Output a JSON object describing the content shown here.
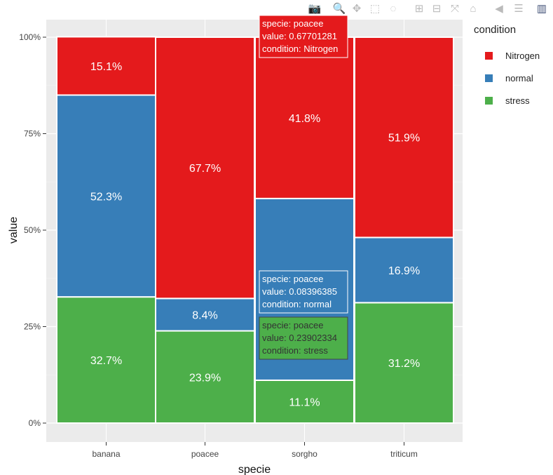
{
  "toolbar": {
    "icons": [
      "camera-icon",
      "zoom-icon",
      "pan-icon",
      "box-select-icon",
      "lasso-icon",
      "zoom-in-icon",
      "zoom-out-icon",
      "autoscale-icon",
      "reset-axes-icon",
      "hover-closest-icon",
      "hover-compare-icon",
      "plotly-logo-icon"
    ]
  },
  "colors": {
    "Nitrogen": "#e41a1c",
    "normal": "#377eb8",
    "stress": "#4daf4a",
    "panel": "#ebebeb"
  },
  "chart_data": {
    "type": "bar",
    "stacked": "percent",
    "xlabel": "specie",
    "ylabel": "value",
    "categories": [
      "banana",
      "poacee",
      "sorgho",
      "triticum"
    ],
    "yticks": [
      "0%",
      "25%",
      "50%",
      "75%",
      "100%"
    ],
    "ylim": [
      0,
      1
    ],
    "series": [
      {
        "name": "stress",
        "values": [
          0.327,
          0.239,
          0.111,
          0.312
        ],
        "labels": [
          "32.7%",
          "23.9%",
          "11.1%",
          "31.2%"
        ]
      },
      {
        "name": "normal",
        "values": [
          0.523,
          0.084,
          0.471,
          0.169
        ],
        "labels": [
          "52.3%",
          "8.4%",
          "",
          "16.9%"
        ]
      },
      {
        "name": "Nitrogen",
        "values": [
          0.151,
          0.677,
          0.418,
          0.519
        ],
        "labels": [
          "15.1%",
          "67.7%",
          "41.8%",
          "51.9%"
        ]
      }
    ],
    "legend": {
      "title": "condition",
      "position": "right",
      "items": [
        "Nitrogen",
        "normal",
        "stress"
      ]
    },
    "grid": true
  },
  "tooltips": [
    {
      "lines": [
        "specie: poacee",
        "value: 0.67701281",
        "condition: Nitrogen"
      ],
      "color": "#e41a1c",
      "text": "#fff"
    },
    {
      "lines": [
        "specie: poacee",
        "value: 0.08396385",
        "condition: normal"
      ],
      "color": "#377eb8",
      "text": "#fff"
    },
    {
      "lines": [
        "specie: poacee",
        "value: 0.23902334",
        "condition: stress"
      ],
      "color": "#4daf4a",
      "text": "#333"
    }
  ]
}
